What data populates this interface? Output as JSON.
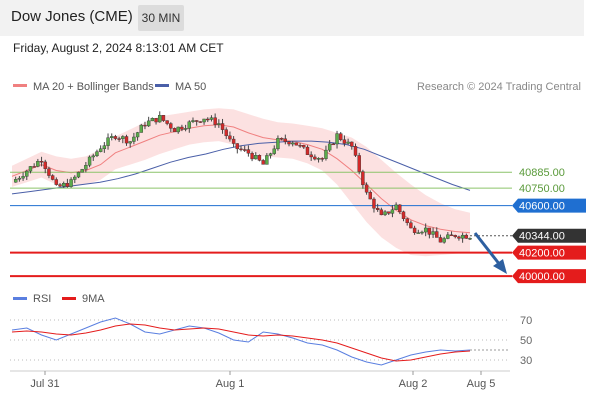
{
  "header": {
    "title": "Dow Jones (CME)",
    "timeframe": "30 MIN",
    "datetime": "Friday, August 2, 2024 8:13:01 AM CET"
  },
  "legend": {
    "ma20_label": "MA 20 + Bollinger Bands",
    "ma50_label": "MA 50",
    "credit": "Research © 2024 Trading Central",
    "rsi_label": "RSI",
    "ma9_label": "9MA"
  },
  "colors": {
    "ma20": "#f08080",
    "bands": "#fcdcdc",
    "ma50": "#4a5fa8",
    "green_level": "#8cc46a",
    "blue_level": "#1f6fd1",
    "red_level": "#e41c1c",
    "last_price_bg": "#333333",
    "rsi": "#5a7fe0",
    "rsi_ma": "#e41c1c",
    "candle_up": "#5aab4a",
    "candle_down": "#d42a2a",
    "arrow": "#2d5fa0"
  },
  "chart_data": [
    {
      "type": "candlestick",
      "title": "Dow Jones (CME)",
      "timeframe": "30 MIN",
      "x_labels": [
        "Jul 31",
        "Aug 1",
        "Aug 2",
        "Aug 5"
      ],
      "last_price": 40344.0,
      "ylim": [
        39950,
        41500
      ],
      "levels": [
        {
          "value": 40885.0,
          "label": "40885.00",
          "kind": "resistance",
          "color": "green"
        },
        {
          "value": 40750.0,
          "label": "40750.00",
          "kind": "resistance",
          "color": "green"
        },
        {
          "value": 40600.0,
          "label": "40600.00",
          "kind": "pivot",
          "color": "blue"
        },
        {
          "value": 40200.0,
          "label": "40200.00",
          "kind": "support",
          "color": "red"
        },
        {
          "value": 40000.0,
          "label": "40000.00",
          "kind": "support",
          "color": "red"
        }
      ],
      "close_path": [
        40800,
        40900,
        41000,
        40750,
        40800,
        40950,
        41100,
        41200,
        41150,
        41300,
        41350,
        41250,
        41300,
        41350,
        41300,
        41100,
        41050,
        40950,
        41150,
        41150,
        41050,
        41000,
        41200,
        41100,
        40700,
        40500,
        40600,
        40400,
        40400,
        40300,
        40350,
        40344
      ],
      "ma20": [
        40850,
        40900,
        40950,
        40900,
        40880,
        40900,
        40950,
        41050,
        41100,
        41150,
        41200,
        41230,
        41260,
        41280,
        41290,
        41270,
        41220,
        41180,
        41160,
        41150,
        41120,
        41080,
        41000,
        40900,
        40780,
        40660,
        40560,
        40480,
        40430,
        40400,
        40380,
        40370
      ],
      "ma50": [
        40700,
        40720,
        40740,
        40760,
        40780,
        40800,
        40830,
        40870,
        40920,
        40970,
        41010,
        41040,
        41080,
        41110,
        41130,
        41140,
        41150,
        41150,
        41140,
        41120,
        41080,
        41020,
        40960,
        40900,
        40840,
        40780,
        40730
      ]
    },
    {
      "type": "line",
      "title": "RSI",
      "series": [
        {
          "name": "RSI",
          "values": [
            60,
            62,
            55,
            50,
            56,
            62,
            68,
            72,
            66,
            58,
            56,
            60,
            64,
            62,
            57,
            50,
            48,
            58,
            56,
            52,
            47,
            45,
            40,
            33,
            28,
            25,
            30,
            35,
            38,
            40,
            39,
            40
          ]
        },
        {
          "name": "9MA",
          "values": [
            58,
            59,
            58,
            56,
            55,
            57,
            60,
            64,
            66,
            65,
            62,
            60,
            61,
            62,
            61,
            58,
            55,
            54,
            55,
            54,
            52,
            50,
            47,
            42,
            37,
            32,
            29,
            30,
            33,
            36,
            38,
            39
          ]
        }
      ],
      "ylim": [
        20,
        80
      ],
      "ticks": [
        "70",
        "50",
        "30"
      ]
    }
  ]
}
